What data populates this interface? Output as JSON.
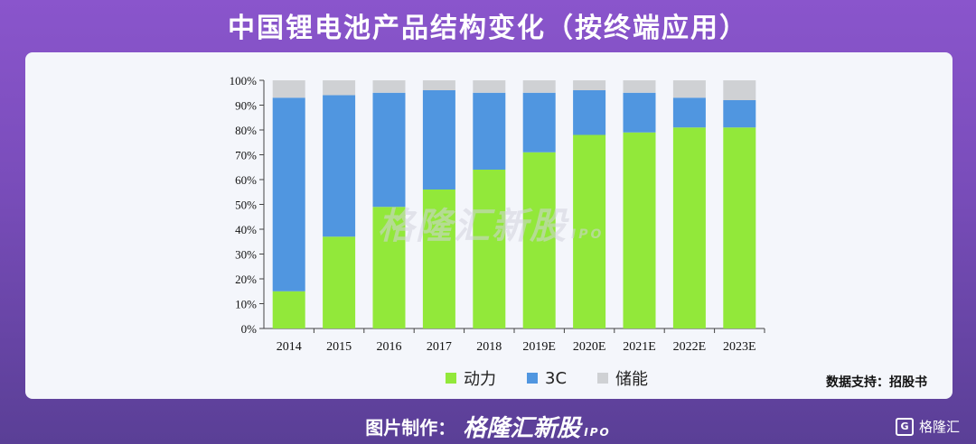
{
  "header": {
    "title": "中国锂电池产品结构变化（按终端应用）"
  },
  "watermark": {
    "text": "格隆汇新股",
    "sub": "IPO"
  },
  "source": "数据支持：招股书",
  "footer": {
    "prefix": "图片制作：",
    "brand": "格隆汇新股",
    "brand_sub": "IPO",
    "logo": "格隆汇",
    "logo_icon": "G"
  },
  "chart_data": {
    "type": "bar",
    "stacked": true,
    "categories": [
      "2014",
      "2015",
      "2016",
      "2017",
      "2018",
      "2019E",
      "2020E",
      "2021E",
      "2022E",
      "2023E"
    ],
    "series": [
      {
        "name": "动力",
        "color": "#92e83a",
        "values": [
          15,
          37,
          49,
          56,
          64,
          71,
          78,
          79,
          81,
          81
        ]
      },
      {
        "name": "3C",
        "color": "#5096e0",
        "values": [
          78,
          57,
          46,
          40,
          31,
          24,
          18,
          16,
          12,
          11
        ]
      },
      {
        "name": "储能",
        "color": "#cfd1d4",
        "values": [
          7,
          6,
          5,
          4,
          5,
          5,
          4,
          5,
          7,
          8
        ]
      }
    ],
    "yticks": [
      "0%",
      "10%",
      "20%",
      "30%",
      "40%",
      "50%",
      "60%",
      "70%",
      "80%",
      "90%",
      "100%"
    ],
    "ylim": [
      0,
      100
    ],
    "legend_position": "bottom"
  }
}
